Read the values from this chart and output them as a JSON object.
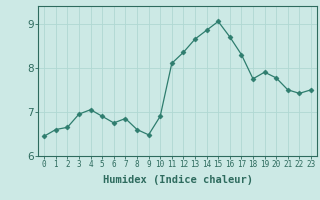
{
  "x": [
    0,
    1,
    2,
    3,
    4,
    5,
    6,
    7,
    8,
    9,
    10,
    11,
    12,
    13,
    14,
    15,
    16,
    17,
    18,
    19,
    20,
    21,
    22,
    23
  ],
  "y": [
    6.45,
    6.6,
    6.65,
    6.95,
    7.05,
    6.9,
    6.75,
    6.85,
    6.6,
    6.48,
    6.9,
    8.1,
    8.35,
    8.65,
    8.85,
    9.05,
    8.7,
    8.3,
    7.75,
    7.9,
    7.77,
    7.5,
    7.42,
    7.5
  ],
  "line_color": "#2e7d6e",
  "marker": "D",
  "marker_size": 2.5,
  "bg_color": "#cce9e5",
  "grid_color": "#b0d8d3",
  "xlabel": "Humidex (Indice chaleur)",
  "ylim": [
    6,
    9.4
  ],
  "xlim": [
    -0.5,
    23.5
  ],
  "yticks": [
    6,
    7,
    8,
    9
  ],
  "xticks": [
    0,
    1,
    2,
    3,
    4,
    5,
    6,
    7,
    8,
    9,
    10,
    11,
    12,
    13,
    14,
    15,
    16,
    17,
    18,
    19,
    20,
    21,
    22,
    23
  ],
  "tick_color": "#2e6b5e",
  "label_color": "#2e6b5e",
  "spine_color": "#2e6b5e",
  "xlabel_fontsize": 7.5,
  "ytick_fontsize": 7.5,
  "xtick_fontsize": 5.5
}
